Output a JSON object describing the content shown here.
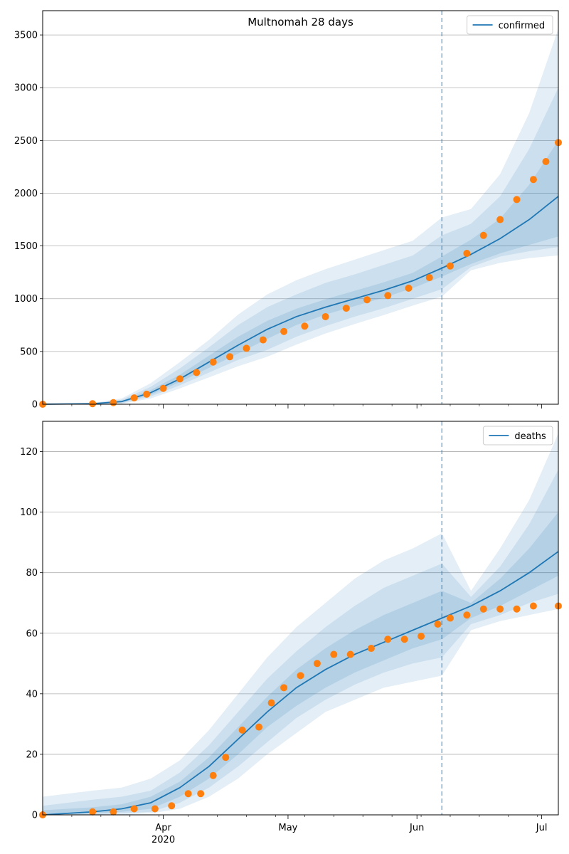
{
  "chart_data": [
    {
      "type": "line",
      "title": "Multnomah 28 days",
      "xlabel": "",
      "ylabel": "",
      "date_range": [
        "2020-03-03",
        "2020-07-05"
      ],
      "ylim": [
        0,
        3730
      ],
      "yticks": [
        0,
        500,
        1000,
        1500,
        2000,
        2500,
        3000,
        3500
      ],
      "xticks": [
        {
          "date": "2020-04-01",
          "label": "Apr",
          "sublabel": "2020"
        },
        {
          "date": "2020-05-01",
          "label": "May",
          "sublabel": ""
        },
        {
          "date": "2020-06-01",
          "label": "Jun",
          "sublabel": ""
        },
        {
          "date": "2020-07-01",
          "label": "Jul",
          "sublabel": ""
        }
      ],
      "forecast_start": "2020-06-07",
      "grid": "y",
      "legend": {
        "position": "top-right",
        "entries": [
          "confirmed"
        ]
      },
      "colors": {
        "line": "#1f77b4",
        "band": "#1f77b4",
        "observed": "#ff7f0e"
      },
      "series": [
        {
          "name": "confirmed",
          "role": "model-median",
          "x": [
            "2020-03-03",
            "2020-03-15",
            "2020-03-22",
            "2020-03-29",
            "2020-04-05",
            "2020-04-12",
            "2020-04-19",
            "2020-04-26",
            "2020-05-03",
            "2020-05-10",
            "2020-05-17",
            "2020-05-24",
            "2020-05-31",
            "2020-06-07",
            "2020-06-14",
            "2020-06-21",
            "2020-06-28",
            "2020-07-05"
          ],
          "values": [
            0,
            5,
            25,
            110,
            240,
            400,
            560,
            710,
            830,
            920,
            1000,
            1080,
            1170,
            1290,
            1420,
            1570,
            1750,
            1970
          ],
          "bands": [
            {
              "level": "outer",
              "lower": [
                0,
                0,
                5,
                55,
                150,
                255,
                360,
                450,
                565,
                670,
                760,
                845,
                935,
                1020,
                1270,
                1340,
                1385,
                1410
              ],
              "upper": [
                0,
                12,
                55,
                200,
                400,
                610,
                850,
                1040,
                1175,
                1280,
                1370,
                1460,
                1550,
                1770,
                1850,
                2180,
                2760,
                3560
              ]
            },
            {
              "level": "middle",
              "lower": [
                0,
                1,
                10,
                75,
                180,
                300,
                420,
                515,
                640,
                740,
                830,
                910,
                1000,
                1090,
                1300,
                1400,
                1450,
                1490
              ],
              "upper": [
                0,
                9,
                42,
                165,
                340,
                540,
                750,
                920,
                1040,
                1150,
                1230,
                1320,
                1410,
                1600,
                1710,
                1970,
                2420,
                3000
              ]
            },
            {
              "level": "inner",
              "lower": [
                0,
                3,
                18,
                90,
                210,
                345,
                480,
                620,
                750,
                850,
                930,
                1010,
                1100,
                1210,
                1330,
                1430,
                1510,
                1590
              ],
              "upper": [
                0,
                7,
                32,
                135,
                280,
                460,
                640,
                790,
                905,
                995,
                1075,
                1155,
                1245,
                1400,
                1560,
                1760,
                2080,
                2500
              ]
            }
          ]
        },
        {
          "name": "observed",
          "role": "points",
          "x": [
            "2020-03-03",
            "2020-03-15",
            "2020-03-20",
            "2020-03-25",
            "2020-03-28",
            "2020-04-01",
            "2020-04-05",
            "2020-04-09",
            "2020-04-13",
            "2020-04-17",
            "2020-04-21",
            "2020-04-25",
            "2020-04-30",
            "2020-05-05",
            "2020-05-10",
            "2020-05-15",
            "2020-05-20",
            "2020-05-25",
            "2020-05-30",
            "2020-06-04",
            "2020-06-09",
            "2020-06-13",
            "2020-06-17",
            "2020-06-21",
            "2020-06-25",
            "2020-06-29",
            "2020-07-02",
            "2020-07-05"
          ],
          "values": [
            0,
            5,
            15,
            60,
            95,
            150,
            240,
            300,
            400,
            450,
            530,
            610,
            690,
            740,
            830,
            910,
            990,
            1030,
            1100,
            1200,
            1310,
            1430,
            1600,
            1750,
            1940,
            2130,
            2300,
            2480
          ]
        }
      ]
    },
    {
      "type": "line",
      "title": "",
      "xlabel": "",
      "ylabel": "",
      "date_range": [
        "2020-03-03",
        "2020-07-05"
      ],
      "ylim": [
        0,
        130
      ],
      "yticks": [
        0,
        20,
        40,
        60,
        80,
        100,
        120
      ],
      "xticks": [
        {
          "date": "2020-04-01",
          "label": "Apr",
          "sublabel": "2020"
        },
        {
          "date": "2020-05-01",
          "label": "May",
          "sublabel": ""
        },
        {
          "date": "2020-06-01",
          "label": "Jun",
          "sublabel": ""
        },
        {
          "date": "2020-07-01",
          "label": "Jul",
          "sublabel": ""
        }
      ],
      "forecast_start": "2020-06-07",
      "grid": "y",
      "legend": {
        "position": "top-right",
        "entries": [
          "deaths"
        ]
      },
      "colors": {
        "line": "#1f77b4",
        "band": "#1f77b4",
        "observed": "#ff7f0e"
      },
      "series": [
        {
          "name": "deaths",
          "role": "model-median",
          "x": [
            "2020-03-03",
            "2020-03-15",
            "2020-03-22",
            "2020-03-29",
            "2020-04-05",
            "2020-04-12",
            "2020-04-19",
            "2020-04-26",
            "2020-05-03",
            "2020-05-10",
            "2020-05-17",
            "2020-05-24",
            "2020-05-31",
            "2020-06-07",
            "2020-06-14",
            "2020-06-21",
            "2020-06-28",
            "2020-07-05"
          ],
          "values": [
            0,
            1,
            2,
            4,
            9,
            16,
            25,
            34,
            42,
            48,
            53,
            57,
            61,
            65,
            69,
            74,
            80,
            87
          ],
          "bands": [
            {
              "level": "outer",
              "lower": [
                0,
                0,
                0,
                0.5,
                2,
                6,
                12,
                20,
                27,
                34,
                38,
                42,
                44,
                46,
                61,
                64,
                66,
                68
              ],
              "upper": [
                6,
                8,
                9,
                12,
                18,
                28,
                40,
                52,
                62,
                70,
                78,
                84,
                88,
                93,
                74,
                88,
                104,
                126
              ]
            },
            {
              "level": "middle",
              "lower": [
                0,
                0,
                0.5,
                1,
                4,
                9,
                16,
                24,
                32,
                38,
                43,
                47,
                50,
                52,
                63,
                66,
                70,
                73
              ],
              "upper": [
                3,
                5,
                6,
                8,
                14,
                23,
                34,
                45,
                54,
                62,
                69,
                75,
                79,
                83,
                72,
                82,
                96,
                114
              ]
            },
            {
              "level": "inner",
              "lower": [
                0,
                0.5,
                1,
                2,
                6,
                12,
                20,
                29,
                36,
                42,
                47,
                51,
                55,
                58,
                65,
                69,
                74,
                79
              ],
              "upper": [
                1.5,
                2.5,
                3.5,
                6,
                11,
                19,
                29,
                39,
                48,
                55,
                61,
                66,
                70,
                74,
                70,
                78,
                88,
                100
              ]
            }
          ]
        },
        {
          "name": "observed",
          "role": "points",
          "x": [
            "2020-03-03",
            "2020-03-15",
            "2020-03-20",
            "2020-03-25",
            "2020-03-30",
            "2020-04-03",
            "2020-04-07",
            "2020-04-10",
            "2020-04-13",
            "2020-04-16",
            "2020-04-20",
            "2020-04-24",
            "2020-04-27",
            "2020-04-30",
            "2020-05-04",
            "2020-05-08",
            "2020-05-12",
            "2020-05-16",
            "2020-05-21",
            "2020-05-25",
            "2020-05-29",
            "2020-06-02",
            "2020-06-06",
            "2020-06-09",
            "2020-06-13",
            "2020-06-17",
            "2020-06-21",
            "2020-06-25",
            "2020-06-29",
            "2020-07-05"
          ],
          "values": [
            0,
            1,
            1,
            2,
            2,
            3,
            7,
            7,
            13,
            19,
            28,
            29,
            37,
            42,
            46,
            50,
            53,
            53,
            55,
            58,
            58,
            59,
            63,
            65,
            66,
            68,
            68,
            68,
            69,
            69
          ]
        }
      ]
    }
  ]
}
